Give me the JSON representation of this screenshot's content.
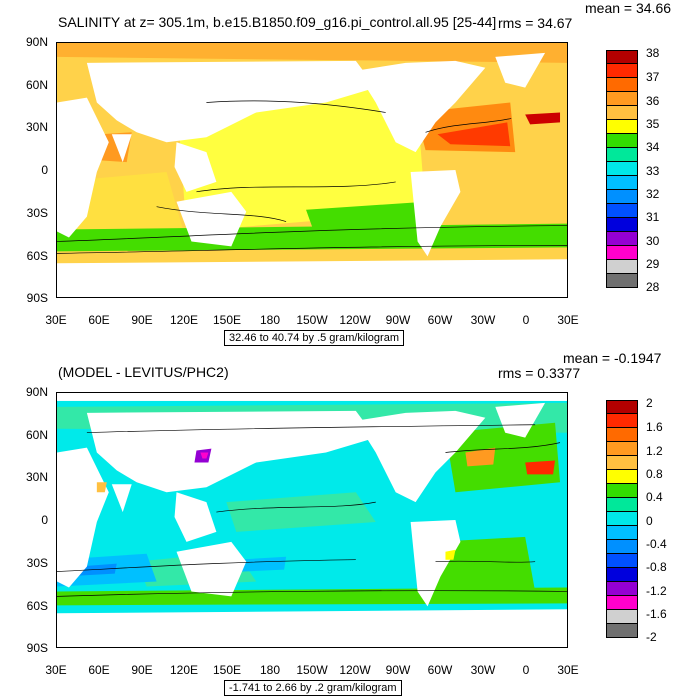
{
  "panels": [
    {
      "title": "SALINITY at z= 305.1m, b.e15.B1850.f09_g16.pi_control.all.95 [25-44]",
      "mean": "mean = 34.66",
      "rms": "rms = 34.67",
      "contour_info": "32.46 to 40.74 by .5 gram/kilogram",
      "colorbar_labels": [
        "38",
        "37",
        "36",
        "35",
        "34",
        "33",
        "32",
        "31",
        "30",
        "29",
        "28"
      ],
      "colorbar_colors": [
        "#b30000",
        "#ff2a00",
        "#ff6a00",
        "#ff9a20",
        "#ffc040",
        "#ffff00",
        "#33dd00",
        "#00e89a",
        "#00e8e8",
        "#00c0ff",
        "#0090ff",
        "#0050ff",
        "#0000dd",
        "#9400d3",
        "#ff00cc",
        "#d0d0d0",
        "#707070"
      ]
    },
    {
      "title": "(MODEL - LEVITUS/PHC2)",
      "mean": "mean = -0.1947",
      "rms": "rms = 0.3377",
      "contour_info": "-1.741 to 2.66 by .2 gram/kilogram",
      "colorbar_labels": [
        "2",
        "1.6",
        "1.2",
        "0.8",
        "0.4",
        "0",
        "-0.4",
        "-0.8",
        "-1.2",
        "-1.6",
        "-2"
      ],
      "colorbar_colors": [
        "#b30000",
        "#ff2a00",
        "#ff6a00",
        "#ff9a20",
        "#ffc040",
        "#ffff00",
        "#33dd00",
        "#00e89a",
        "#00e8e8",
        "#00c0ff",
        "#0090ff",
        "#0050ff",
        "#0000dd",
        "#9400d3",
        "#ff00cc",
        "#d0d0d0",
        "#707070"
      ]
    }
  ],
  "axes": {
    "lat_labels": [
      "90N",
      "60N",
      "30N",
      "0",
      "30S",
      "60S",
      "90S"
    ],
    "lon_labels": [
      "30E",
      "60E",
      "90E",
      "120E",
      "150E",
      "180",
      "150W",
      "120W",
      "90W",
      "60W",
      "30W",
      "0",
      "30E"
    ]
  }
}
